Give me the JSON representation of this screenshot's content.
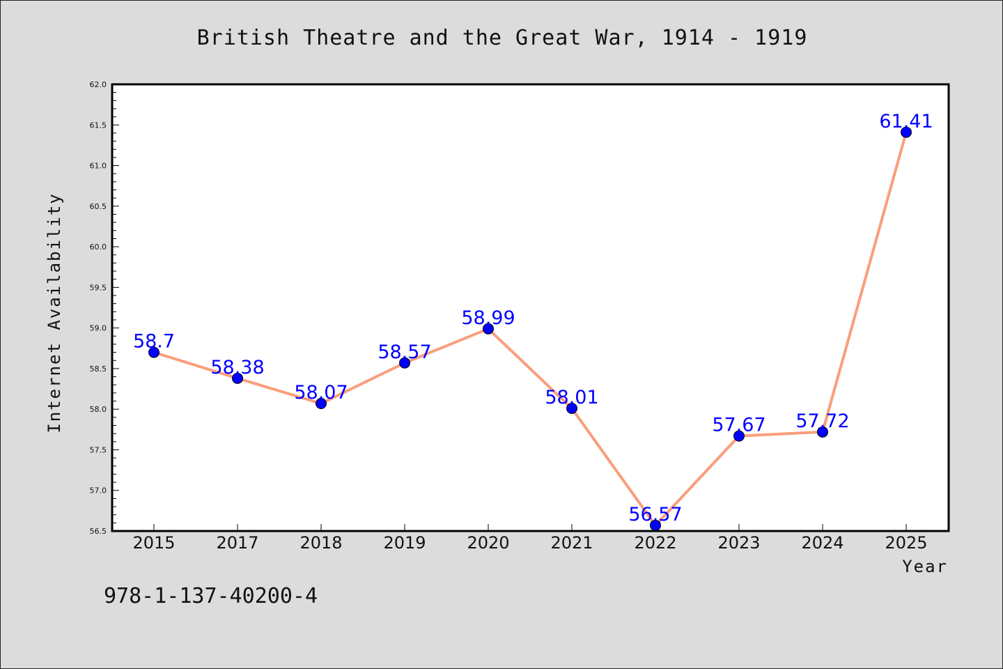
{
  "chart_data": {
    "type": "line",
    "title": "British Theatre and the Great War, 1914 - 1919",
    "xlabel": "Year",
    "ylabel": "Internet Availability",
    "categories": [
      "2015",
      "2017",
      "2018",
      "2019",
      "2020",
      "2021",
      "2022",
      "2023",
      "2024",
      "2025"
    ],
    "series": [
      {
        "values": [
          58.7,
          58.38,
          58.07,
          58.57,
          58.99,
          58.01,
          56.57,
          57.67,
          57.72,
          61.41
        ],
        "line_color": "#fa9e7c",
        "marker_color": "#0000ff"
      }
    ],
    "data_labels": [
      "58.7",
      "58.38",
      "58.07",
      "58.57",
      "58.99",
      "58.01",
      "56.57",
      "57.67",
      "57.72",
      "61.41"
    ],
    "ylim": [
      56.5,
      62.0
    ],
    "yticks": [
      "56.5",
      "57.0",
      "57.5",
      "58.0",
      "58.5",
      "59.0",
      "59.5",
      "60.0",
      "60.5",
      "61.0",
      "61.5",
      "62.0"
    ],
    "grid": false,
    "legend": "none"
  },
  "footer": {
    "isbn": "978-1-137-40200-4"
  },
  "colors": {
    "background": "#dcdcdc",
    "plot_background": "#ffffff",
    "line": "#fa9e7c",
    "marker": "#0000ff",
    "data_label": "#0000ff"
  }
}
